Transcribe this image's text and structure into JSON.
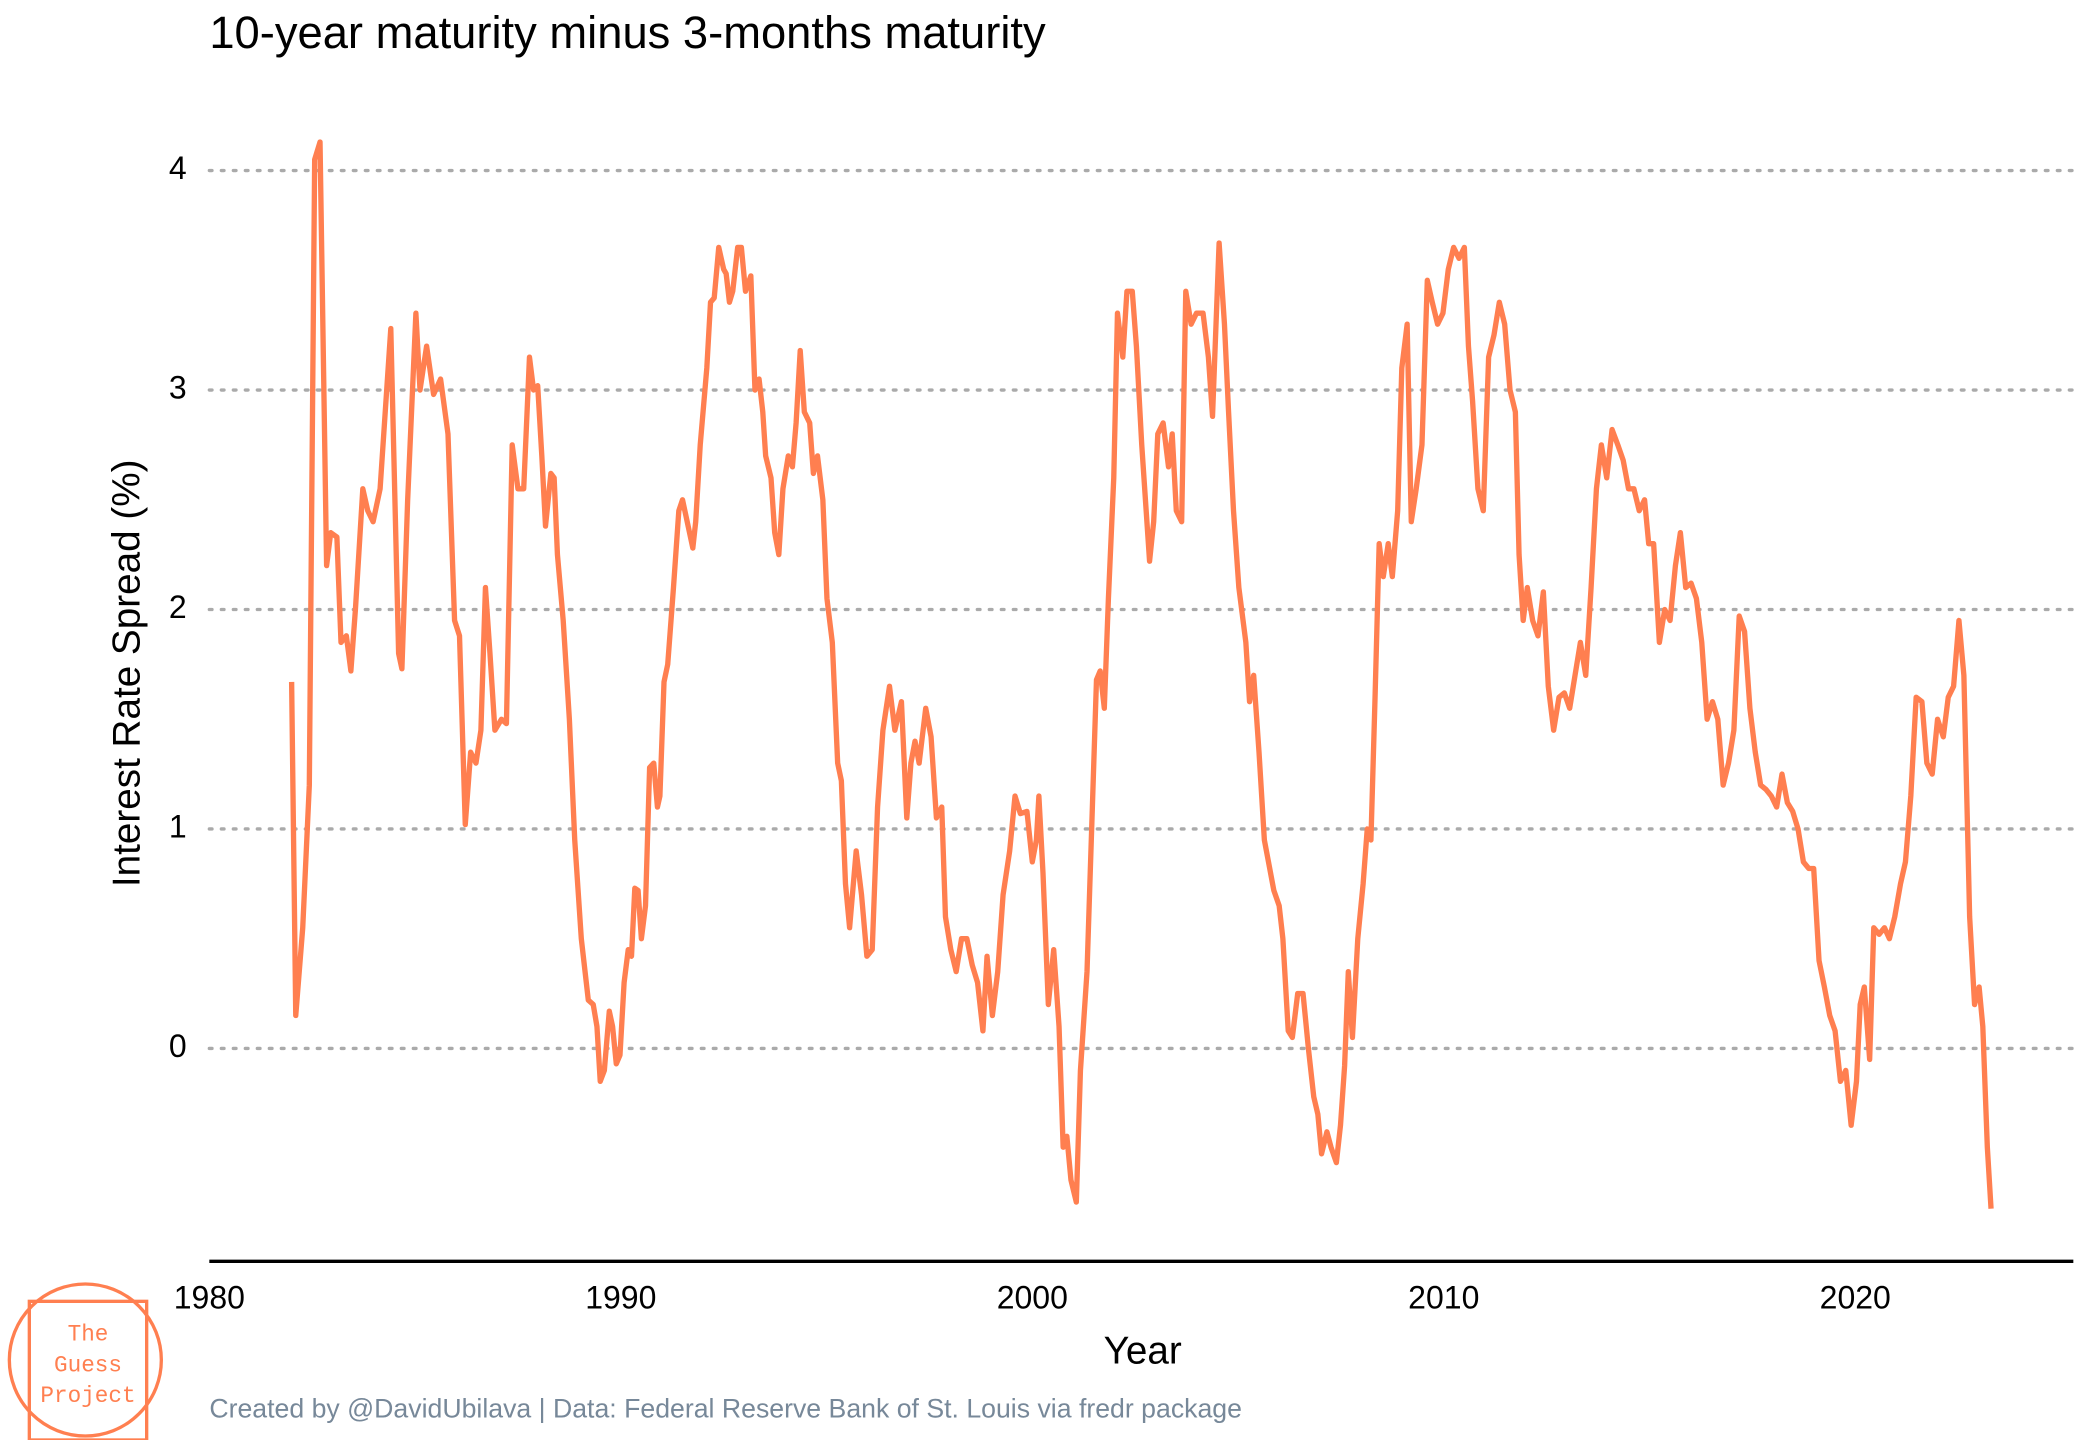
{
  "chart_data": {
    "type": "line",
    "title": "10-year maturity minus 3-months maturity",
    "x_label": "Year",
    "y_label": "Interest Rate Spread (%)",
    "caption": "Created by @DavidUbilava | Data: Federal Reserve Bank of St. Louis via fredr package",
    "logo": [
      "The",
      "Guess",
      "Project"
    ],
    "color": "#ff7f50",
    "grid": true,
    "xlim": [
      1980,
      2025.3
    ],
    "xticks": [
      1980,
      1990,
      2000,
      2010,
      2020
    ],
    "ylim": [
      -0.97,
      4.2
    ],
    "yticks": [
      0,
      1,
      2,
      3,
      4
    ],
    "x": [
      1982.0,
      1982.1,
      1982.27,
      1982.43,
      1982.56,
      1982.69,
      1982.85,
      1982.95,
      1983.1,
      1983.2,
      1983.33,
      1983.44,
      1983.55,
      1983.73,
      1983.85,
      1983.98,
      1984.15,
      1984.41,
      1984.6,
      1984.68,
      1984.82,
      1985.02,
      1985.12,
      1985.28,
      1985.45,
      1985.62,
      1985.8,
      1985.96,
      1986.08,
      1986.22,
      1986.35,
      1986.48,
      1986.6,
      1986.71,
      1986.82,
      1986.94,
      1987.1,
      1987.22,
      1987.36,
      1987.5,
      1987.64,
      1987.78,
      1987.88,
      1987.98,
      1988.08,
      1988.17,
      1988.3,
      1988.38,
      1988.46,
      1988.6,
      1988.75,
      1988.88,
      1989.04,
      1989.21,
      1989.33,
      1989.42,
      1989.5,
      1989.6,
      1989.72,
      1989.8,
      1989.89,
      1989.98,
      1990.08,
      1990.18,
      1990.26,
      1990.34,
      1990.42,
      1990.5,
      1990.6,
      1990.7,
      1990.8,
      1990.89,
      1990.95,
      1991.05,
      1991.14,
      1991.28,
      1991.41,
      1991.5,
      1991.67,
      1991.75,
      1991.82,
      1991.93,
      1992.09,
      1992.18,
      1992.27,
      1992.38,
      1992.5,
      1992.56,
      1992.64,
      1992.72,
      1992.84,
      1992.93,
      1993.03,
      1993.16,
      1993.26,
      1993.36,
      1993.45,
      1993.52,
      1993.65,
      1993.74,
      1993.84,
      1993.94,
      1994.07,
      1994.17,
      1994.26,
      1994.36,
      1994.46,
      1994.59,
      1994.68,
      1994.78,
      1994.91,
      1995.01,
      1995.14,
      1995.27,
      1995.36,
      1995.46,
      1995.56,
      1995.72,
      1995.85,
      1995.98,
      1996.11,
      1996.24,
      1996.37,
      1996.53,
      1996.66,
      1996.82,
      1996.95,
      1997.05,
      1997.15,
      1997.25,
      1997.41,
      1997.54,
      1997.67,
      1997.8,
      1997.89,
      1998.02,
      1998.15,
      1998.28,
      1998.41,
      1998.54,
      1998.67,
      1998.8,
      1998.9,
      1999.03,
      1999.16,
      1999.29,
      1999.45,
      1999.58,
      1999.71,
      1999.87,
      2000.0,
      2000.1,
      2000.16,
      2000.26,
      2000.39,
      2000.52,
      2000.65,
      2000.75,
      2000.84,
      2000.94,
      2001.07,
      2001.17,
      2001.33,
      2001.46,
      2001.56,
      2001.65,
      2001.75,
      2001.85,
      2001.98,
      2002.07,
      2002.2,
      2002.3,
      2002.43,
      2002.53,
      2002.66,
      2002.85,
      2002.95,
      2003.05,
      2003.18,
      2003.31,
      2003.4,
      2003.5,
      2003.63,
      2003.73,
      2003.86,
      2003.99,
      2004.15,
      2004.28,
      2004.38,
      2004.54,
      2004.67,
      2004.77,
      2004.89,
      2005.02,
      2005.19,
      2005.28,
      2005.38,
      2005.51,
      2005.64,
      2005.74,
      2005.87,
      2006.0,
      2006.09,
      2006.22,
      2006.32,
      2006.45,
      2006.58,
      2006.71,
      2006.84,
      2006.94,
      2007.03,
      2007.16,
      2007.26,
      2007.39,
      2007.49,
      2007.59,
      2007.68,
      2007.78,
      2007.91,
      2008.04,
      2008.14,
      2008.23,
      2008.33,
      2008.43,
      2008.53,
      2008.65,
      2008.75,
      2008.88,
      2008.98,
      2009.11,
      2009.21,
      2009.33,
      2009.47,
      2009.6,
      2009.72,
      2009.85,
      2009.98,
      2010.11,
      2010.24,
      2010.37,
      2010.5,
      2010.6,
      2010.7,
      2010.83,
      2010.96,
      2011.09,
      2011.22,
      2011.35,
      2011.48,
      2011.61,
      2011.74,
      2011.83,
      2011.93,
      2012.03,
      2012.16,
      2012.29,
      2012.42,
      2012.54,
      2012.67,
      2012.8,
      2012.93,
      2013.06,
      2013.19,
      2013.32,
      2013.45,
      2013.58,
      2013.71,
      2013.83,
      2013.96,
      2014.09,
      2014.23,
      2014.36,
      2014.49,
      2014.62,
      2014.75,
      2014.88,
      2014.98,
      2015.1,
      2015.24,
      2015.37,
      2015.5,
      2015.63,
      2015.75,
      2015.88,
      2016.01,
      2016.14,
      2016.27,
      2016.4,
      2016.53,
      2016.66,
      2016.79,
      2016.92,
      2017.05,
      2017.18,
      2017.31,
      2017.44,
      2017.57,
      2017.7,
      2017.83,
      2017.96,
      2018.09,
      2018.22,
      2018.35,
      2018.48,
      2018.61,
      2018.74,
      2018.87,
      2018.99,
      2019.12,
      2019.25,
      2019.38,
      2019.51,
      2019.64,
      2019.77,
      2019.9,
      2020.03,
      2020.12,
      2020.22,
      2020.35,
      2020.45,
      2020.58,
      2020.71,
      2020.83,
      2020.96,
      2021.1,
      2021.22,
      2021.35,
      2021.48,
      2021.62,
      2021.74,
      2021.87,
      2022.0,
      2022.14,
      2022.26,
      2022.39,
      2022.52,
      2022.64,
      2022.78,
      2022.9,
      2023.01,
      2023.1,
      2023.21,
      2023.3
    ],
    "values": [
      1.67,
      0.15,
      0.55,
      1.2,
      4.05,
      4.13,
      2.2,
      2.35,
      2.33,
      1.85,
      1.88,
      1.72,
      2.0,
      2.55,
      2.45,
      2.4,
      2.55,
      3.28,
      1.8,
      1.73,
      2.5,
      3.35,
      3.0,
      3.2,
      2.98,
      3.05,
      2.8,
      1.95,
      1.88,
      1.02,
      1.35,
      1.3,
      1.45,
      2.1,
      1.8,
      1.45,
      1.5,
      1.48,
      2.75,
      2.55,
      2.55,
      3.15,
      3.0,
      3.02,
      2.7,
      2.38,
      2.62,
      2.6,
      2.25,
      1.95,
      1.5,
      0.95,
      0.5,
      0.22,
      0.2,
      0.1,
      -0.15,
      -0.1,
      0.17,
      0.1,
      -0.07,
      -0.03,
      0.3,
      0.45,
      0.42,
      0.73,
      0.72,
      0.5,
      0.65,
      1.28,
      1.3,
      1.1,
      1.15,
      1.67,
      1.75,
      2.1,
      2.45,
      2.5,
      2.35,
      2.28,
      2.4,
      2.75,
      3.1,
      3.4,
      3.42,
      3.65,
      3.55,
      3.53,
      3.4,
      3.45,
      3.65,
      3.65,
      3.45,
      3.52,
      3.0,
      3.05,
      2.9,
      2.7,
      2.6,
      2.35,
      2.25,
      2.55,
      2.7,
      2.65,
      2.85,
      3.18,
      2.9,
      2.85,
      2.62,
      2.7,
      2.5,
      2.05,
      1.85,
      1.3,
      1.22,
      0.75,
      0.55,
      0.9,
      0.7,
      0.42,
      0.45,
      1.1,
      1.45,
      1.65,
      1.45,
      1.58,
      1.05,
      1.3,
      1.4,
      1.3,
      1.55,
      1.42,
      1.05,
      1.1,
      0.6,
      0.45,
      0.35,
      0.5,
      0.5,
      0.38,
      0.3,
      0.08,
      0.42,
      0.15,
      0.35,
      0.7,
      0.9,
      1.15,
      1.07,
      1.08,
      0.85,
      0.95,
      1.15,
      0.8,
      0.2,
      0.45,
      0.1,
      -0.45,
      -0.4,
      -0.6,
      -0.7,
      -0.1,
      0.35,
      1.1,
      1.68,
      1.72,
      1.55,
      2.05,
      2.6,
      3.35,
      3.15,
      3.45,
      3.45,
      3.2,
      2.75,
      2.22,
      2.4,
      2.8,
      2.85,
      2.65,
      2.8,
      2.45,
      2.4,
      3.45,
      3.3,
      3.35,
      3.35,
      3.15,
      2.88,
      3.67,
      3.3,
      2.9,
      2.45,
      2.1,
      1.85,
      1.58,
      1.7,
      1.35,
      0.95,
      0.85,
      0.72,
      0.65,
      0.5,
      0.08,
      0.05,
      0.25,
      0.25,
      0.0,
      -0.22,
      -0.3,
      -0.48,
      -0.38,
      -0.45,
      -0.52,
      -0.35,
      -0.08,
      0.35,
      0.05,
      0.5,
      0.75,
      1.0,
      0.95,
      1.6,
      2.3,
      2.15,
      2.3,
      2.15,
      2.45,
      3.1,
      3.3,
      2.4,
      2.55,
      2.75,
      3.5,
      3.4,
      3.3,
      3.35,
      3.55,
      3.65,
      3.6,
      3.65,
      3.2,
      2.95,
      2.55,
      2.45,
      3.15,
      3.25,
      3.4,
      3.3,
      3.0,
      2.9,
      2.25,
      1.95,
      2.1,
      1.95,
      1.88,
      2.08,
      1.65,
      1.45,
      1.6,
      1.62,
      1.55,
      1.7,
      1.85,
      1.7,
      2.1,
      2.55,
      2.75,
      2.6,
      2.82,
      2.75,
      2.68,
      2.55,
      2.55,
      2.45,
      2.5,
      2.3,
      2.3,
      1.85,
      2.0,
      1.95,
      2.2,
      2.35,
      2.1,
      2.12,
      2.05,
      1.85,
      1.5,
      1.58,
      1.5,
      1.2,
      1.3,
      1.45,
      1.97,
      1.9,
      1.55,
      1.35,
      1.2,
      1.18,
      1.15,
      1.1,
      1.25,
      1.12,
      1.08,
      1.0,
      0.85,
      0.82,
      0.82,
      0.4,
      0.28,
      0.15,
      0.08,
      -0.15,
      -0.1,
      -0.35,
      -0.15,
      0.2,
      0.28,
      -0.05,
      0.55,
      0.52,
      0.55,
      0.5,
      0.6,
      0.75,
      0.85,
      1.15,
      1.6,
      1.58,
      1.3,
      1.25,
      1.5,
      1.42,
      1.6,
      1.65,
      1.95,
      1.7,
      0.6,
      0.2,
      0.28,
      0.1,
      -0.45,
      -0.73
    ]
  }
}
